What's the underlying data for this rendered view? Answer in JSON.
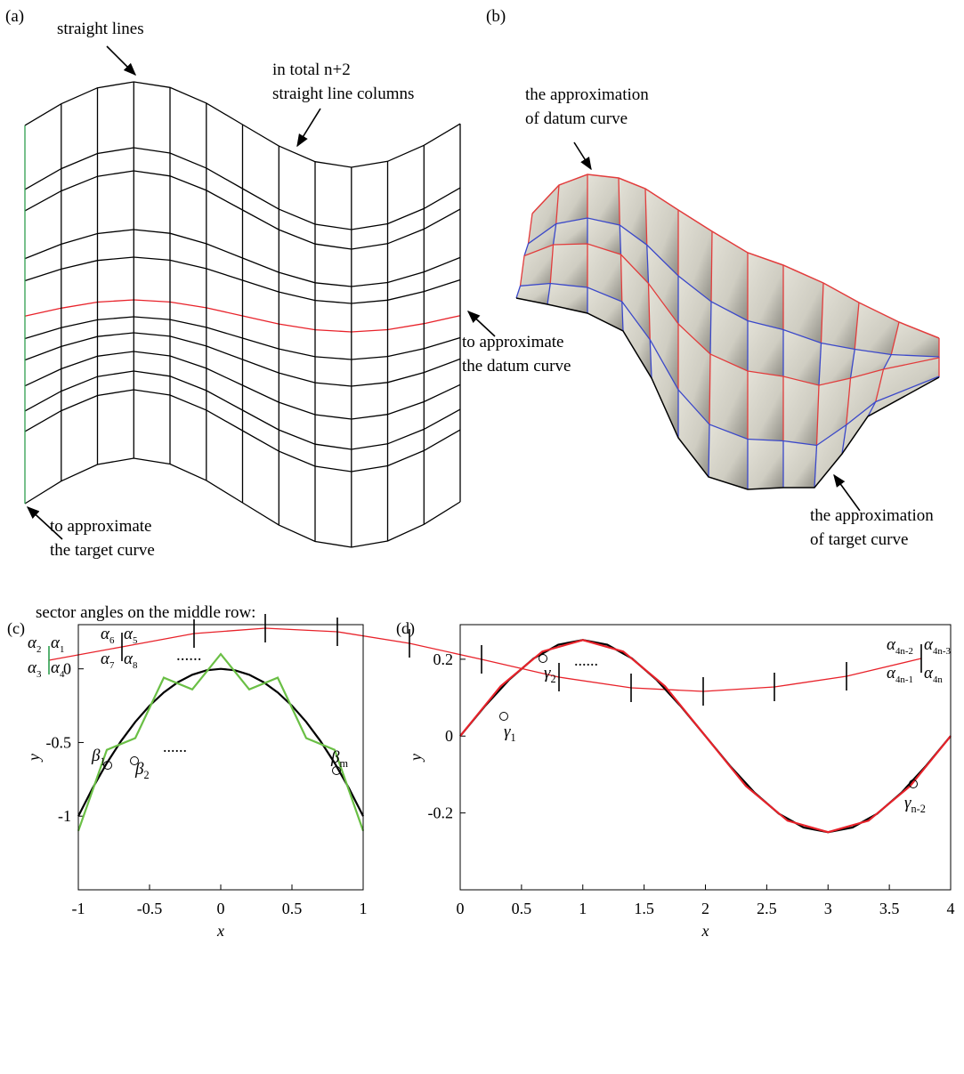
{
  "panel_a": {
    "label": "(a)",
    "notes": [
      [
        "straight lines"
      ],
      [
        "in total n+2",
        "straight line columns"
      ],
      [
        "to approximate",
        "the datum curve"
      ],
      [
        "to approximate",
        "the target curve"
      ]
    ]
  },
  "panel_b": {
    "label": "(b)",
    "notes": [
      [
        "the approximation",
        "of datum curve"
      ],
      [
        "the approximation",
        "of target curve"
      ]
    ]
  },
  "middle_row": {
    "caption": "sector angles on the middle row:",
    "ellipsis": "......",
    "angles": [
      {
        "symbol": "α",
        "sub": "2"
      },
      {
        "symbol": "α",
        "sub": "1"
      },
      {
        "symbol": "α",
        "sub": "3"
      },
      {
        "symbol": "α",
        "sub": "4"
      },
      {
        "symbol": "α",
        "sub": "6"
      },
      {
        "symbol": "α",
        "sub": "5"
      },
      {
        "symbol": "α",
        "sub": "7"
      },
      {
        "symbol": "α",
        "sub": "8"
      },
      {
        "symbol": "α",
        "sub": "4n-2"
      },
      {
        "symbol": "α",
        "sub": "4n-3"
      },
      {
        "symbol": "α",
        "sub": "4n-1"
      },
      {
        "symbol": "α",
        "sub": "4n"
      }
    ]
  },
  "chart_data": [
    {
      "type": "line",
      "panel_label": "(c)",
      "xlabel": "x",
      "ylabel": "y",
      "xlim": [
        -1,
        1
      ],
      "ylim": [
        -1.5,
        0.3
      ],
      "xticks": [
        -1,
        -0.5,
        0,
        0.5,
        1
      ],
      "yticks": [
        -1,
        -0.5,
        0
      ],
      "series": [
        {
          "color": "#000000",
          "x": [
            -1,
            -0.9,
            -0.8,
            -0.7,
            -0.6,
            -0.5,
            -0.4,
            -0.3,
            -0.2,
            -0.1,
            0,
            0.1,
            0.2,
            0.3,
            0.4,
            0.5,
            0.6,
            0.7,
            0.8,
            0.9,
            1
          ],
          "values": [
            -1,
            -0.81,
            -0.64,
            -0.49,
            -0.36,
            -0.25,
            -0.16,
            -0.09,
            -0.04,
            -0.01,
            0,
            -0.01,
            -0.04,
            -0.09,
            -0.16,
            -0.25,
            -0.36,
            -0.49,
            -0.64,
            -0.81,
            -1
          ]
        },
        {
          "color": "#6abf45",
          "x": [
            -1,
            -0.8,
            -0.6,
            -0.4,
            -0.2,
            0,
            0.2,
            0.4,
            0.6,
            0.8,
            1
          ],
          "values": [
            -1.1,
            -0.55,
            -0.47,
            -0.06,
            -0.14,
            0.1,
            -0.14,
            -0.06,
            -0.47,
            -0.55,
            -1.1
          ]
        }
      ],
      "annotations": [
        {
          "symbol": "β",
          "sub": "1"
        },
        {
          "symbol": "β",
          "sub": "2"
        },
        "......",
        {
          "symbol": "β",
          "sub": "m"
        }
      ]
    },
    {
      "type": "line",
      "panel_label": "(d)",
      "xlabel": "x",
      "ylabel": "y",
      "xlim": [
        0,
        4
      ],
      "ylim": [
        -0.4,
        0.29
      ],
      "xticks": [
        0,
        0.5,
        1,
        1.5,
        2,
        2.5,
        3,
        3.5,
        4
      ],
      "yticks": [
        -0.2,
        0,
        0.2
      ],
      "series": [
        {
          "color": "#000000",
          "x": [
            0,
            0.2,
            0.4,
            0.6,
            0.8,
            1,
            1.2,
            1.4,
            1.6,
            1.8,
            2,
            2.2,
            2.4,
            2.6,
            2.8,
            3,
            3.2,
            3.4,
            3.6,
            3.8,
            4
          ],
          "values": [
            0,
            0.0773,
            0.1469,
            0.2023,
            0.2378,
            0.25,
            0.2378,
            0.2023,
            0.1469,
            0.0773,
            0,
            -0.0773,
            -0.1469,
            -0.2023,
            -0.2378,
            -0.25,
            -0.2378,
            -0.2023,
            -0.1469,
            -0.0773,
            0
          ]
        },
        {
          "color": "#e8222a",
          "x": [
            0,
            0.33,
            0.67,
            1,
            1.33,
            1.67,
            2,
            2.33,
            2.67,
            3,
            3.33,
            3.67,
            4
          ],
          "values": [
            0,
            0.13,
            0.22,
            0.25,
            0.22,
            0.13,
            0,
            -0.13,
            -0.22,
            -0.25,
            -0.22,
            -0.13,
            0
          ]
        }
      ],
      "annotations": [
        {
          "symbol": "γ",
          "sub": "1"
        },
        {
          "symbol": "γ",
          "sub": "2"
        },
        "......",
        {
          "symbol": "γ",
          "sub": "n-2"
        }
      ]
    }
  ]
}
